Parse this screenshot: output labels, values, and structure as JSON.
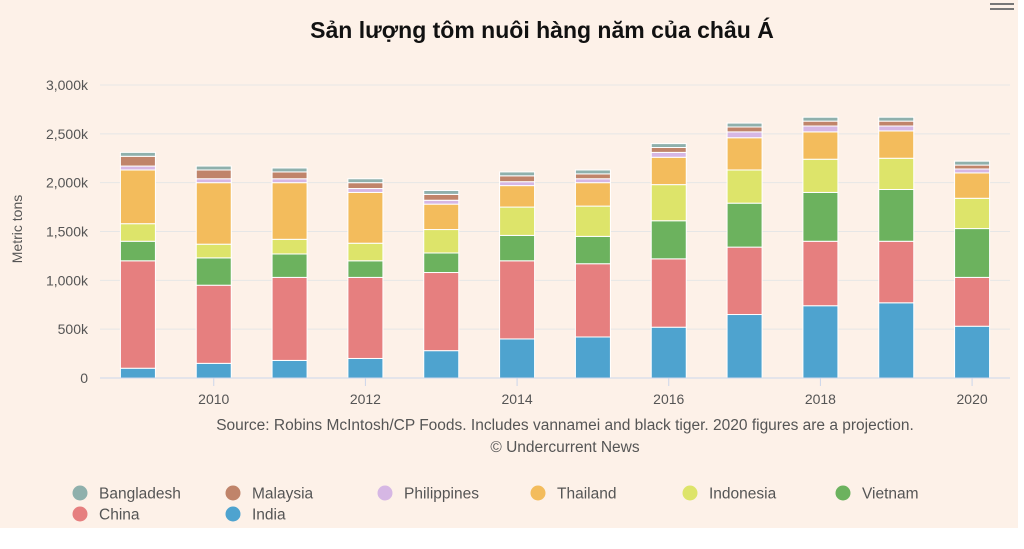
{
  "chart_data": {
    "type": "bar",
    "stacked": true,
    "title": "Sản lượng tôm nuôi hàng năm của châu Á",
    "ylabel": "Metric tons",
    "ylim": [
      0,
      3000000
    ],
    "y_ticks": [
      "0",
      "500k",
      "1,000k",
      "1,500k",
      "2,000k",
      "2,500k",
      "3,000k"
    ],
    "categories": [
      "2009",
      "2010",
      "2011",
      "2012",
      "2013",
      "2014",
      "2015",
      "2016",
      "2017",
      "2018",
      "2019",
      "2020"
    ],
    "x_tick_labels": [
      "",
      "2010",
      "",
      "2012",
      "",
      "2014",
      "",
      "2016",
      "",
      "2018",
      "",
      "2020"
    ],
    "grid": true,
    "legend_position": "bottom",
    "source_line1": "Source: Robins McIntosh/CP Foods. Includes vannamei and black tiger. 2020 figures are a projection.",
    "source_line2": "© Undercurrent News",
    "series": [
      {
        "name": "India",
        "color": "#4ea3cf",
        "values": [
          100000,
          150000,
          180000,
          200000,
          280000,
          400000,
          420000,
          520000,
          650000,
          740000,
          770000,
          530000
        ]
      },
      {
        "name": "China",
        "color": "#e67f7f",
        "values": [
          1100000,
          800000,
          850000,
          830000,
          800000,
          800000,
          750000,
          700000,
          690000,
          660000,
          630000,
          500000
        ]
      },
      {
        "name": "Vietnam",
        "color": "#6cb25e",
        "values": [
          200000,
          280000,
          240000,
          170000,
          200000,
          260000,
          280000,
          390000,
          450000,
          500000,
          530000,
          500000
        ]
      },
      {
        "name": "Indonesia",
        "color": "#dde46a",
        "values": [
          180000,
          140000,
          150000,
          180000,
          240000,
          290000,
          310000,
          370000,
          340000,
          340000,
          320000,
          310000
        ]
      },
      {
        "name": "Thailand",
        "color": "#f3bc5c",
        "values": [
          550000,
          630000,
          580000,
          520000,
          260000,
          220000,
          240000,
          280000,
          330000,
          280000,
          280000,
          260000
        ]
      },
      {
        "name": "Philippines",
        "color": "#d6b7e4",
        "values": [
          40000,
          40000,
          40000,
          40000,
          40000,
          40000,
          40000,
          50000,
          60000,
          60000,
          50000,
          40000
        ]
      },
      {
        "name": "Malaysia",
        "color": "#c0846a",
        "values": [
          100000,
          90000,
          70000,
          60000,
          60000,
          60000,
          50000,
          50000,
          50000,
          50000,
          50000,
          40000
        ]
      },
      {
        "name": "Bangladesh",
        "color": "#8fb0ac",
        "values": [
          40000,
          40000,
          40000,
          40000,
          40000,
          40000,
          40000,
          40000,
          40000,
          40000,
          40000,
          40000
        ]
      }
    ],
    "legend": [
      {
        "name": "Bangladesh",
        "color": "#8fb0ac"
      },
      {
        "name": "Malaysia",
        "color": "#c0846a"
      },
      {
        "name": "Philippines",
        "color": "#d6b7e4"
      },
      {
        "name": "Thailand",
        "color": "#f3bc5c"
      },
      {
        "name": "Indonesia",
        "color": "#dde46a"
      },
      {
        "name": "Vietnam",
        "color": "#6cb25e"
      },
      {
        "name": "China",
        "color": "#e67f7f"
      },
      {
        "name": "India",
        "color": "#4ea3cf"
      }
    ]
  }
}
